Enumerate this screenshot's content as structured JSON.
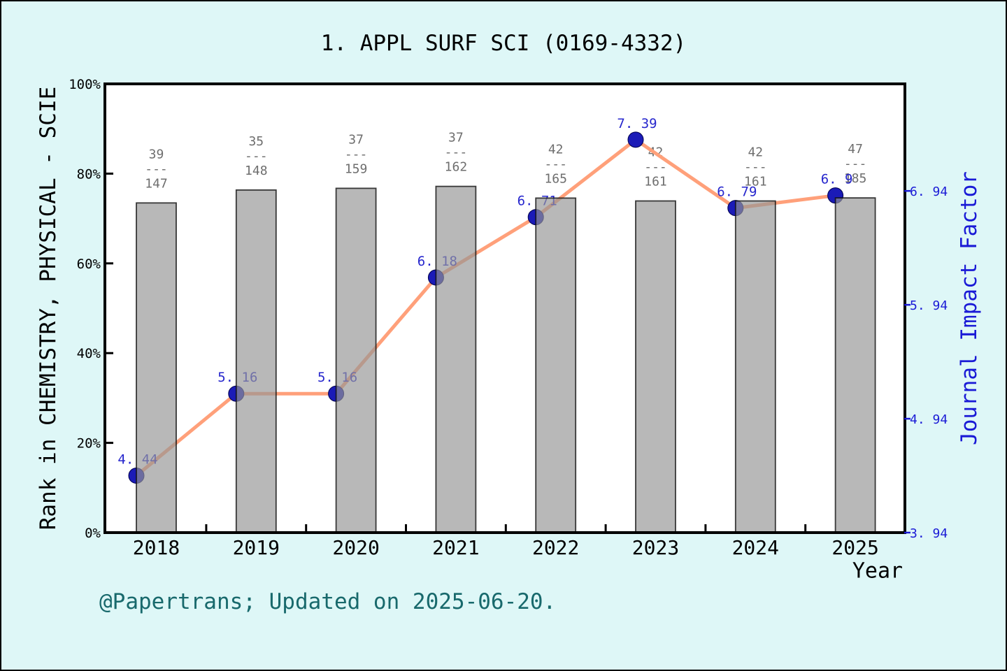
{
  "window": {
    "title": "1. APPL SURF SCI (0169-4332)"
  },
  "footer": {
    "text": "@Papertrans; Updated on 2025-06-20."
  },
  "axes": {
    "left": {
      "label": "Rank in CHEMISTRY, PHYSICAL - SCIE",
      "ticks": [
        "0%",
        "20%",
        "40%",
        "60%",
        "80%",
        "100%"
      ],
      "tick_values": [
        0,
        20,
        40,
        60,
        80,
        100
      ]
    },
    "right": {
      "label": "Journal Impact Factor",
      "ticks": [
        "3. 94",
        "4. 94",
        "5. 94",
        "6. 94"
      ],
      "tick_values": [
        3.94,
        4.94,
        5.94,
        6.94
      ]
    },
    "x": {
      "label": "Year",
      "categories": [
        "2018",
        "2019",
        "2020",
        "2021",
        "2022",
        "2023",
        "2024",
        "2025"
      ]
    }
  },
  "chart_data": {
    "type": "bar+line",
    "title": "1. APPL SURF SCI (0169-4332)",
    "categories": [
      "2018",
      "2019",
      "2020",
      "2021",
      "2022",
      "2023",
      "2024",
      "2025"
    ],
    "series": [
      {
        "name": "Rank in CHEMISTRY, PHYSICAL - SCIE (bars, left axis, percentile = 1 - rank/total)",
        "type": "bar",
        "rank": [
          39,
          35,
          37,
          37,
          42,
          42,
          42,
          47
        ],
        "total": [
          147,
          148,
          159,
          162,
          165,
          161,
          161,
          185
        ],
        "percentile": [
          73.47,
          76.35,
          76.73,
          77.16,
          74.55,
          73.91,
          73.91,
          74.59
        ]
      },
      {
        "name": "Journal Impact Factor (line, right axis)",
        "type": "line",
        "values": [
          4.44,
          5.16,
          5.16,
          6.18,
          6.71,
          7.39,
          6.79,
          6.9
        ],
        "labels": [
          "4. 44",
          "5. 16",
          "5. 16",
          "6. 18",
          "6. 71",
          "7. 39",
          "6. 79",
          "6. 9"
        ]
      }
    ],
    "left_ylim": [
      0,
      100
    ],
    "right_ylim": [
      3.94,
      7.88
    ],
    "grid": false,
    "legend": false,
    "fraction_separator": "---"
  },
  "colors": {
    "page_background": "#DEF7F7",
    "plot_background": "#FFFFFF",
    "frame": "#000000",
    "bar_fill": "rgba(149,149,149,0.67)",
    "bar_border": "rgba(15,15,15,0.8)",
    "line": "#FFA07A",
    "marker": "#1B1BB7",
    "marker_edge": "#00004D",
    "point_label": "#2626CD",
    "fraction_label": "#6E6E6E",
    "right_axis": "#1A1AD6",
    "footer": "#18696C"
  }
}
